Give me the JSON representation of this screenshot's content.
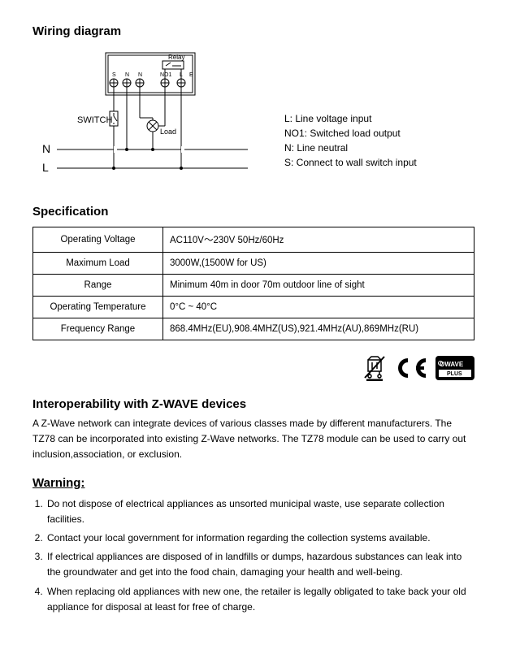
{
  "wiring": {
    "heading": "Wiring diagram",
    "labels": {
      "relay": "Relay",
      "switch": "SWITCH",
      "load": "Load",
      "N": "N",
      "L": "L",
      "S": "S",
      "Nt": "N",
      "NO1": "NO1",
      "Lt": "L",
      "Et": "E"
    },
    "legend": {
      "l": "L: Line voltage input",
      "no1": "NO1: Switched load output",
      "n": "N: Line neutral",
      "s": "S: Connect to wall  switch input"
    }
  },
  "spec": {
    "heading": "Specification",
    "rows": [
      {
        "label": "Operating Voltage",
        "value": "AC110V～230V    50Hz/60Hz"
      },
      {
        "label": "Maximum Load",
        "value": "3000W,(1500W for US)"
      },
      {
        "label": "Range",
        "value": "Minimum 40m in door 70m outdoor line of sight"
      },
      {
        "label": "Operating Temperature",
        "value": "0°C ~ 40°C"
      },
      {
        "label": "Frequency Range",
        "value": "868.4MHz(EU),908.4MHZ(US),921.4MHz(AU),869MHz(RU)"
      }
    ]
  },
  "interop": {
    "heading": "Interoperability with Z-WAVE devices",
    "body": "A Z-Wave network can integrate devices of various classes made by different  manufacturers. The TZ78 can be incorporated into existing Z-Wave networks. The TZ78 module can be used to carry out inclusion,association, or exclusion."
  },
  "warning": {
    "heading": "Warning:",
    "items": [
      "Do not dispose of electrical appliances as unsorted municipal waste, use separate collection facilities.",
      "Contact your local government for information regarding the collection systems available.",
      "If electrical appliances are disposed of in landfills or dumps, hazardous substances can leak into the groundwater and get into the food chain, damaging your health and well-being.",
      "When replacing old appliances with new one,   the retailer is legally obligated to take back your old appliance for disposal at least for free of charge."
    ]
  },
  "colors": {
    "stroke": "#000000",
    "bg": "#ffffff"
  }
}
